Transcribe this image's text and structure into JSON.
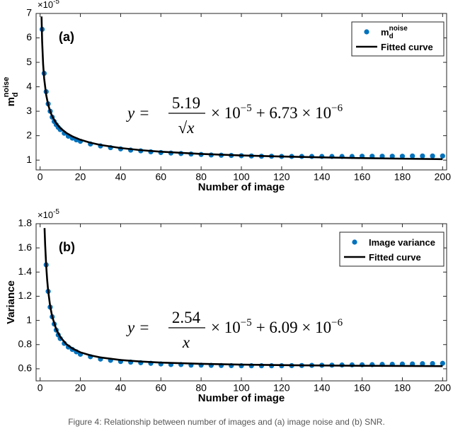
{
  "chart_data": [
    {
      "type": "scatter",
      "panel_label": "(a)",
      "ylabel": {
        "base": "m",
        "sub": "d",
        "sup": "noise"
      },
      "xlabel": "Number of image",
      "exponent_label": {
        "base": "×10",
        "sup": "-5"
      },
      "equation": {
        "lhs": "y =",
        "numerator": "5.19",
        "denominator": "√x",
        "factor": "× 10",
        "factor_exp": "−5",
        "offset": "+ 6.73 × 10",
        "offset_exp": "−6"
      },
      "xlim": [
        -2,
        202
      ],
      "xticks": [
        0,
        20,
        40,
        60,
        80,
        100,
        120,
        140,
        160,
        180,
        200
      ],
      "ylim": [
        0.6,
        7
      ],
      "yticks": [
        1,
        2,
        3,
        4,
        5,
        6,
        7
      ],
      "legend": "top-right",
      "series": [
        {
          "name": "m",
          "name_sub": "d",
          "name_sup": "noise",
          "style": "markers",
          "color": "#0072bd",
          "x": [
            1,
            2,
            3,
            4,
            5,
            6,
            7,
            8,
            9,
            10,
            12,
            14,
            16,
            18,
            20,
            25,
            30,
            35,
            40,
            45,
            50,
            55,
            60,
            65,
            70,
            75,
            80,
            85,
            90,
            95,
            100,
            105,
            110,
            115,
            120,
            125,
            130,
            135,
            140,
            145,
            150,
            155,
            160,
            165,
            170,
            175,
            180,
            185,
            190,
            195,
            200
          ],
          "values": [
            6.35,
            4.55,
            3.8,
            3.3,
            3.0,
            2.76,
            2.58,
            2.45,
            2.34,
            2.25,
            2.1,
            1.98,
            1.9,
            1.83,
            1.77,
            1.66,
            1.58,
            1.51,
            1.46,
            1.41,
            1.38,
            1.34,
            1.31,
            1.29,
            1.27,
            1.25,
            1.23,
            1.21,
            1.2,
            1.19,
            1.18,
            1.17,
            1.16,
            1.16,
            1.15,
            1.15,
            1.15,
            1.15,
            1.15,
            1.15,
            1.15,
            1.15,
            1.16,
            1.16,
            1.16,
            1.16,
            1.16,
            1.17,
            1.17,
            1.17,
            1.17
          ]
        },
        {
          "name": "Fitted curve",
          "style": "line",
          "color": "#000000",
          "x": [
            0.7,
            1,
            1.5,
            2,
            3,
            4,
            5,
            6,
            8,
            10,
            13,
            16,
            20,
            25,
            30,
            40,
            50,
            60,
            80,
            100,
            120,
            140,
            160,
            180,
            200
          ],
          "values": [
            6.876,
            5.863,
            4.911,
            4.343,
            3.669,
            3.268,
            2.994,
            2.792,
            2.508,
            2.314,
            2.112,
            1.971,
            1.834,
            1.711,
            1.621,
            1.494,
            1.407,
            1.343,
            1.253,
            1.192,
            1.147,
            1.112,
            1.083,
            1.06,
            1.04
          ]
        }
      ]
    },
    {
      "type": "scatter",
      "panel_label": "(b)",
      "ylabel": {
        "base": "Variance"
      },
      "xlabel": "Number of image",
      "exponent_label": {
        "base": "×10",
        "sup": "-5"
      },
      "equation": {
        "lhs": "y =",
        "numerator": "2.54",
        "denominator": "x",
        "factor": "× 10",
        "factor_exp": "−5",
        "offset": "+ 6.09 × 10",
        "offset_exp": "−6"
      },
      "xlim": [
        -2,
        202
      ],
      "xticks": [
        0,
        20,
        40,
        60,
        80,
        100,
        120,
        140,
        160,
        180,
        200
      ],
      "ylim": [
        0.5,
        1.8
      ],
      "yticks": [
        0.6,
        0.8,
        1,
        1.2,
        1.4,
        1.6,
        1.8
      ],
      "legend": "top-right",
      "series": [
        {
          "name": "Image variance",
          "style": "markers",
          "color": "#0072bd",
          "x": [
            3,
            4,
            5,
            6,
            7,
            8,
            9,
            10,
            12,
            14,
            16,
            18,
            20,
            25,
            30,
            35,
            40,
            45,
            50,
            55,
            60,
            65,
            70,
            75,
            80,
            85,
            90,
            95,
            100,
            105,
            110,
            115,
            120,
            125,
            130,
            135,
            140,
            145,
            150,
            155,
            160,
            165,
            170,
            175,
            180,
            185,
            190,
            195,
            200
          ],
          "values": [
            1.46,
            1.24,
            1.11,
            1.03,
            0.97,
            0.92,
            0.88,
            0.85,
            0.81,
            0.78,
            0.76,
            0.74,
            0.72,
            0.7,
            0.68,
            0.67,
            0.66,
            0.655,
            0.65,
            0.645,
            0.64,
            0.635,
            0.635,
            0.63,
            0.63,
            0.628,
            0.627,
            0.626,
            0.625,
            0.625,
            0.625,
            0.625,
            0.625,
            0.626,
            0.627,
            0.628,
            0.629,
            0.63,
            0.631,
            0.632,
            0.633,
            0.634,
            0.636,
            0.637,
            0.639,
            0.64,
            0.642,
            0.643,
            0.645
          ]
        },
        {
          "name": "Fitted curve",
          "style": "line",
          "color": "#000000",
          "x": [
            2.2,
            2.5,
            3,
            3.5,
            4,
            5,
            6,
            8,
            10,
            13,
            16,
            20,
            25,
            30,
            40,
            50,
            60,
            80,
            100,
            130,
            160,
            200
          ],
          "values": [
            1.764,
            1.625,
            1.456,
            1.335,
            1.244,
            1.117,
            1.032,
            0.927,
            0.863,
            0.804,
            0.768,
            0.736,
            0.711,
            0.6937,
            0.6725,
            0.6598,
            0.6513,
            0.6408,
            0.6344,
            0.6285,
            0.6249,
            0.6217
          ]
        }
      ]
    }
  ],
  "caption": "Figure 4: Relationship between number of images and (a) image noise and (b) SNR."
}
